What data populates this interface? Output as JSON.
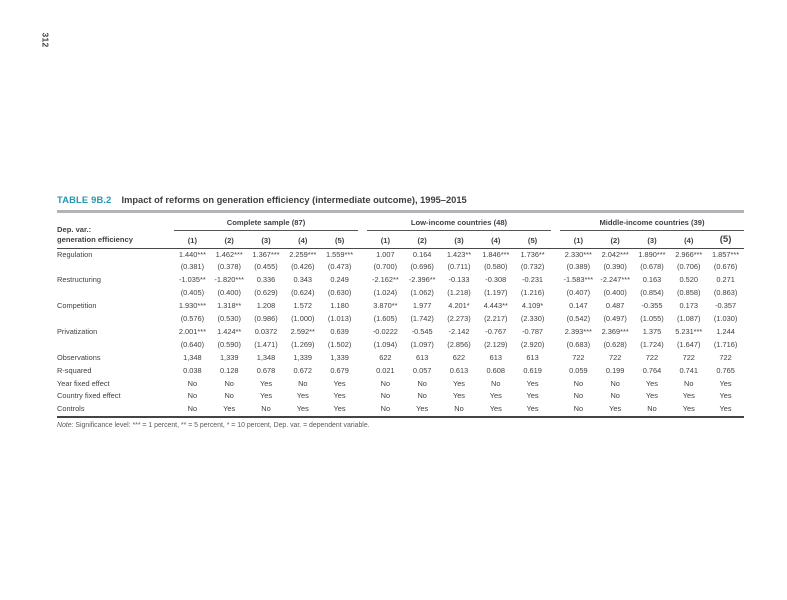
{
  "page": {
    "number": "312"
  },
  "table": {
    "label": "TABLE 9B.2",
    "title": "Impact of reforms on generation efficiency (intermediate outcome), 1995–2015",
    "dep_var_line1": "Dep. var.:",
    "dep_var_line2": "generation efficiency",
    "groups": [
      {
        "name": "Complete sample (87)",
        "columns": [
          "(1)",
          "(2)",
          "(3)",
          "(4)",
          "(5)"
        ]
      },
      {
        "name": "Low-income countries (48)",
        "columns": [
          "(1)",
          "(2)",
          "(3)",
          "(4)",
          "(5)"
        ]
      },
      {
        "name": "Middle-income countries (39)",
        "columns": [
          "(1)",
          "(2)",
          "(3)",
          "(4)",
          "(5)"
        ]
      }
    ],
    "rows": [
      {
        "label": "Regulation",
        "values": [
          "1.440***",
          "1.462***",
          "1.367***",
          "2.259***",
          "1.559***",
          "1.007",
          "0.164",
          "1.423**",
          "1.846***",
          "1.736**",
          "2.330***",
          "2.042***",
          "1.890***",
          "2.966***",
          "1.857***"
        ]
      },
      {
        "label": "",
        "values": [
          "(0.381)",
          "(0.378)",
          "(0.455)",
          "(0.426)",
          "(0.473)",
          "(0.700)",
          "(0.696)",
          "(0.711)",
          "(0.580)",
          "(0.732)",
          "(0.389)",
          "(0.390)",
          "(0.678)",
          "(0.706)",
          "(0.676)"
        ]
      },
      {
        "label": "Restructuring",
        "values": [
          "-1.035**",
          "-1.820***",
          "0.336",
          "0.343",
          "0.249",
          "-2.162**",
          "-2.396**",
          "-0.133",
          "-0.308",
          "-0.231",
          "-1.583***",
          "-2.247***",
          "0.163",
          "0.520",
          "0.271"
        ]
      },
      {
        "label": "",
        "values": [
          "(0.405)",
          "(0.400)",
          "(0.629)",
          "(0.624)",
          "(0.630)",
          "(1.024)",
          "(1.062)",
          "(1.218)",
          "(1.197)",
          "(1.216)",
          "(0.407)",
          "(0.400)",
          "(0.854)",
          "(0.858)",
          "(0.863)"
        ]
      },
      {
        "label": "Competition",
        "values": [
          "1.930***",
          "1.318**",
          "1.208",
          "1.572",
          "1.180",
          "3.870**",
          "1.977",
          "4.201*",
          "4.443**",
          "4.109*",
          "0.147",
          "0.487",
          "-0.355",
          "0.173",
          "-0.357"
        ]
      },
      {
        "label": "",
        "values": [
          "(0.576)",
          "(0.530)",
          "(0.986)",
          "(1.000)",
          "(1.013)",
          "(1.605)",
          "(1.742)",
          "(2.273)",
          "(2.217)",
          "(2.330)",
          "(0.542)",
          "(0.497)",
          "(1.055)",
          "(1.087)",
          "(1.030)"
        ]
      },
      {
        "label": "Privatization",
        "values": [
          "2.001***",
          "1.424**",
          "0.0372",
          "2.592**",
          "0.639",
          "-0.0222",
          "-0.545",
          "-2.142",
          "-0.767",
          "-0.787",
          "2.393***",
          "2.369***",
          "1.375",
          "5.231***",
          "1.244"
        ]
      },
      {
        "label": "",
        "values": [
          "(0.640)",
          "(0.590)",
          "(1.471)",
          "(1.269)",
          "(1.502)",
          "(1.094)",
          "(1.097)",
          "(2.856)",
          "(2.129)",
          "(2.920)",
          "(0.683)",
          "(0.628)",
          "(1.724)",
          "(1.647)",
          "(1.716)"
        ]
      },
      {
        "label": "Observations",
        "values": [
          "1,348",
          "1,339",
          "1,348",
          "1,339",
          "1,339",
          "622",
          "613",
          "622",
          "613",
          "613",
          "722",
          "722",
          "722",
          "722",
          "722"
        ]
      },
      {
        "label": "R-squared",
        "values": [
          "0.038",
          "0.128",
          "0.678",
          "0.672",
          "0.679",
          "0.021",
          "0.057",
          "0.613",
          "0.608",
          "0.619",
          "0.059",
          "0.199",
          "0.764",
          "0.741",
          "0.765"
        ]
      },
      {
        "label": "Year fixed effect",
        "values": [
          "No",
          "No",
          "Yes",
          "No",
          "Yes",
          "No",
          "No",
          "Yes",
          "No",
          "Yes",
          "No",
          "No",
          "Yes",
          "No",
          "Yes"
        ]
      },
      {
        "label": "Country fixed effect",
        "values": [
          "No",
          "No",
          "Yes",
          "Yes",
          "Yes",
          "No",
          "No",
          "Yes",
          "Yes",
          "Yes",
          "No",
          "No",
          "Yes",
          "Yes",
          "Yes"
        ]
      },
      {
        "label": "Controls",
        "values": [
          "No",
          "Yes",
          "No",
          "Yes",
          "Yes",
          "No",
          "Yes",
          "No",
          "Yes",
          "Yes",
          "No",
          "Yes",
          "No",
          "Yes",
          "Yes"
        ]
      }
    ],
    "note_label": "Note:",
    "note_text": " Significance level: *** = 1 percent, ** = 5 percent, * = 10 percent, Dep. var. = dependent variable.",
    "colors": {
      "accent_teal": "#2596b0",
      "rule_gray": "#b1b3b6",
      "line_dark": "#47484a",
      "text_ink": "#414042"
    }
  }
}
